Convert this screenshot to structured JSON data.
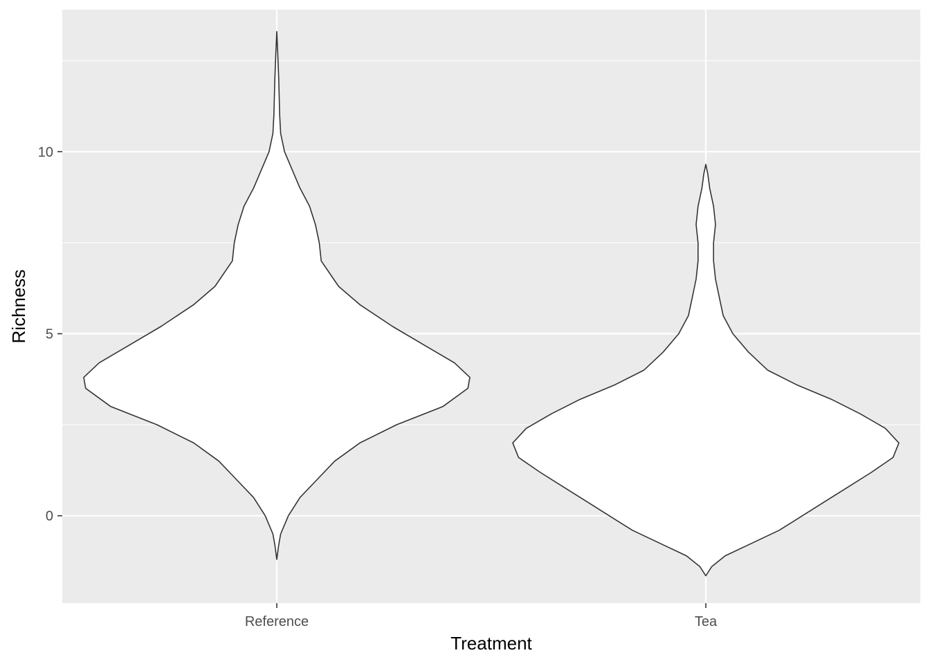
{
  "chart_data": {
    "type": "violin",
    "title": "",
    "xlabel": "Treatment",
    "ylabel": "Richness",
    "ylim": [
      -2.4,
      13.9
    ],
    "yticks": [
      0,
      5,
      10
    ],
    "grid": true,
    "background": "#ebebeb",
    "categories": [
      "Reference",
      "Tea"
    ],
    "series": [
      {
        "category": "Reference",
        "range": [
          -1.2,
          13.3
        ],
        "density_profile": [
          [
            -1.2,
            0.0
          ],
          [
            -0.8,
            0.01
          ],
          [
            -0.5,
            0.02
          ],
          [
            0.0,
            0.06
          ],
          [
            0.5,
            0.12
          ],
          [
            1.0,
            0.21
          ],
          [
            1.5,
            0.3
          ],
          [
            2.0,
            0.43
          ],
          [
            2.5,
            0.62
          ],
          [
            3.0,
            0.86
          ],
          [
            3.5,
            0.99
          ],
          [
            3.8,
            1.0
          ],
          [
            4.2,
            0.92
          ],
          [
            4.7,
            0.76
          ],
          [
            5.2,
            0.6
          ],
          [
            5.8,
            0.43
          ],
          [
            6.3,
            0.32
          ],
          [
            7.0,
            0.23
          ],
          [
            7.5,
            0.22
          ],
          [
            8.0,
            0.2
          ],
          [
            8.5,
            0.17
          ],
          [
            9.0,
            0.12
          ],
          [
            9.5,
            0.08
          ],
          [
            10.0,
            0.04
          ],
          [
            10.5,
            0.02
          ],
          [
            11.0,
            0.015
          ],
          [
            12.0,
            0.01
          ],
          [
            12.7,
            0.005
          ],
          [
            13.3,
            0.0
          ]
        ]
      },
      {
        "category": "Tea",
        "range": [
          -1.65,
          9.65
        ],
        "density_profile": [
          [
            -1.65,
            0.0
          ],
          [
            -1.4,
            0.03
          ],
          [
            -1.1,
            0.1
          ],
          [
            -0.8,
            0.22
          ],
          [
            -0.4,
            0.38
          ],
          [
            0.0,
            0.5
          ],
          [
            0.4,
            0.62
          ],
          [
            0.8,
            0.74
          ],
          [
            1.2,
            0.86
          ],
          [
            1.6,
            0.97
          ],
          [
            2.0,
            1.0
          ],
          [
            2.4,
            0.93
          ],
          [
            2.8,
            0.8
          ],
          [
            3.2,
            0.65
          ],
          [
            3.6,
            0.47
          ],
          [
            4.0,
            0.32
          ],
          [
            4.5,
            0.22
          ],
          [
            5.0,
            0.14
          ],
          [
            5.5,
            0.09
          ],
          [
            6.0,
            0.07
          ],
          [
            6.5,
            0.05
          ],
          [
            7.0,
            0.04
          ],
          [
            7.5,
            0.04
          ],
          [
            8.0,
            0.05
          ],
          [
            8.5,
            0.04
          ],
          [
            9.0,
            0.02
          ],
          [
            9.4,
            0.01
          ],
          [
            9.65,
            0.0
          ]
        ]
      }
    ]
  }
}
